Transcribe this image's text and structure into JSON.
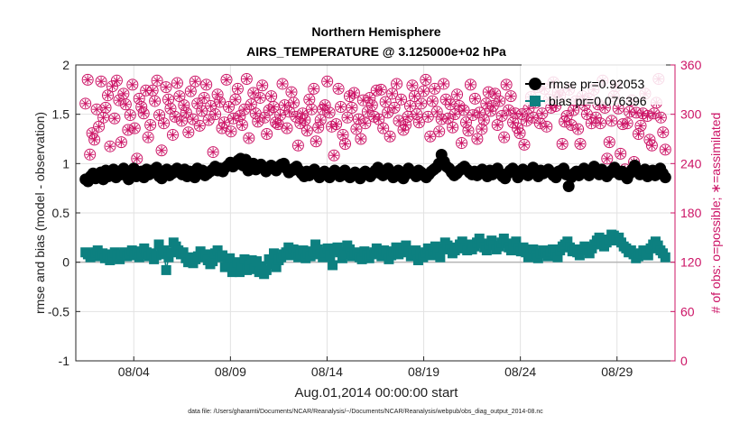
{
  "chart_data": {
    "type": "line",
    "title": "Northern Hemisphere",
    "subtitle": "AIRS_TEMPERATURE @ 3.125000e+02 hPa",
    "xlabel": "Aug.01,2014 00:00:00 start",
    "ylabel_left": "rmse and bias (model - observation)",
    "ylabel_right": "# of obs: o=possible; ∗=assimilated",
    "footnote": "data file: /Users/gharamti/Documents/NCAR/Reanalysis/~/Documents/NCAR/Reanalysis/webpub/obs_diag_output_2014-08.nc",
    "xlim": [
      1,
      32
    ],
    "ylim_left": [
      -1,
      2
    ],
    "ylim_right": [
      0,
      360
    ],
    "x_ticks": [
      4,
      9,
      14,
      19,
      24,
      29
    ],
    "x_tick_labels": [
      "08/04",
      "08/09",
      "08/14",
      "08/19",
      "08/24",
      "08/29"
    ],
    "y_left_ticks": [
      -1,
      -0.5,
      0,
      0.5,
      1,
      1.5,
      2
    ],
    "y_left_tick_labels": [
      "-1",
      "-0.5",
      "0",
      "0.5",
      "1",
      "1.5",
      "2"
    ],
    "y_right_ticks": [
      0,
      60,
      120,
      180,
      240,
      300,
      360
    ],
    "y_right_tick_labels": [
      "0",
      "60",
      "120",
      "180",
      "240",
      "300",
      "360"
    ],
    "grid": true,
    "legend_position": "top-right",
    "colors": {
      "rmse": "#000000",
      "bias": "#0d8080",
      "obs": "#cc1466",
      "grid": "#e2e2e2",
      "zero_line": "#b5b5b5"
    },
    "series": [
      {
        "name": "rmse",
        "legend": "rmse pr=0.92053",
        "axis": "left",
        "marker": "circle",
        "values": [
          0.84,
          0.82,
          0.87,
          0.9,
          0.85,
          0.88,
          0.91,
          0.84,
          0.93,
          0.87,
          0.9,
          0.94,
          0.86,
          0.92,
          0.89,
          0.95,
          0.88,
          0.84,
          0.91,
          0.95,
          0.87,
          0.9,
          0.92,
          0.86,
          0.94,
          0.89,
          0.93,
          0.91,
          0.96,
          0.87,
          0.85,
          0.92,
          0.94,
          0.88,
          0.9,
          0.93,
          0.95,
          0.91,
          0.89,
          0.94,
          0.87,
          0.92,
          0.9,
          0.86,
          0.95,
          0.91,
          0.93,
          0.88,
          0.9,
          0.92,
          0.94,
          0.97,
          0.93,
          0.95,
          0.92,
          0.96,
          0.98,
          1.01,
          0.97,
          0.99,
          1.03,
          1.05,
          0.98,
          1.04,
          0.93,
          0.96,
          1.0,
          0.94,
          0.97,
          0.99,
          0.95,
          0.92,
          0.96,
          0.98,
          0.95,
          0.93,
          0.97,
          0.99,
          1.0,
          0.95,
          0.91,
          0.93,
          0.95,
          0.97,
          0.93,
          0.9,
          0.87,
          0.92,
          0.88,
          0.91,
          0.94,
          0.9,
          0.86,
          0.89,
          0.92,
          0.88,
          0.86,
          0.9,
          0.93,
          0.89,
          0.87,
          0.91,
          0.93,
          0.88,
          0.86,
          0.89,
          0.91,
          0.88,
          0.85,
          0.9,
          0.92,
          0.89,
          0.87,
          0.9,
          0.93,
          0.96,
          0.9,
          0.88,
          0.92,
          0.95,
          0.91,
          0.86,
          0.9,
          0.93,
          0.87,
          0.85,
          0.89,
          0.95,
          0.92,
          0.9,
          0.87,
          0.93,
          0.91,
          0.88,
          0.86,
          0.89,
          0.92,
          0.94,
          0.96,
          1.0,
          1.09,
          1.02,
          0.97,
          0.95,
          0.91,
          0.88,
          0.9,
          0.93,
          0.95,
          0.97,
          0.94,
          0.91,
          0.89,
          0.92,
          0.88,
          0.9,
          0.94,
          0.91,
          0.87,
          0.93,
          0.89,
          0.91,
          0.95,
          0.9,
          0.87,
          0.85,
          0.9,
          0.93,
          0.95,
          0.91,
          0.86,
          0.89,
          0.94,
          0.92,
          0.88,
          0.9,
          0.96,
          0.91,
          0.87,
          0.93,
          0.9,
          0.92,
          0.94,
          0.91,
          0.88,
          0.86,
          0.92,
          0.93,
          0.95,
          0.89,
          0.77,
          0.86,
          0.9,
          0.92,
          0.88,
          0.91,
          0.95,
          0.9,
          0.88,
          0.93,
          0.97,
          0.92,
          0.89,
          0.94,
          0.91,
          0.87,
          0.9,
          0.93,
          0.96,
          0.91,
          0.89,
          0.92,
          0.88,
          0.85,
          0.9,
          0.94,
          0.98,
          0.93,
          0.89,
          0.92,
          0.94,
          0.87,
          0.9,
          0.93,
          0.88,
          0.91,
          0.95,
          0.9,
          0.86
        ]
      },
      {
        "name": "bias",
        "legend": "bias pr=0.076396",
        "axis": "left",
        "marker": "square",
        "values": [
          0.1,
          0.08,
          0.05,
          0.07,
          0.1,
          0.12,
          0.06,
          0.09,
          0.04,
          0.08,
          0.02,
          0.05,
          0.1,
          0.07,
          0.03,
          0.08,
          0.1,
          0.06,
          0.09,
          0.12,
          0.07,
          0.11,
          0.05,
          0.08,
          0.14,
          0.1,
          0.06,
          0.09,
          0.03,
          0.07,
          0.18,
          0.08,
          0.12,
          -0.08,
          0.05,
          0.1,
          0.2,
          0.16,
          0.12,
          0.08,
          0.1,
          0.04,
          0.0,
          0.05,
          -0.01,
          0.03,
          0.06,
          0.11,
          0.05,
          0.08,
          0.02,
          -0.02,
          0.01,
          0.09,
          0.12,
          0.05,
          0.07,
          -0.05,
          -0.02,
          0.04,
          -0.1,
          -0.05,
          0.0,
          -0.1,
          -0.04,
          0.03,
          -0.08,
          -0.03,
          0.02,
          -0.07,
          0.01,
          -0.1,
          -0.04,
          -0.12,
          -0.08,
          0.03,
          -0.02,
          0.09,
          -0.05,
          0.02,
          0.05,
          0.08,
          0.1,
          0.15,
          0.07,
          0.13,
          0.1,
          0.05,
          0.08,
          0.12,
          0.04,
          0.09,
          0.06,
          0.11,
          0.18,
          0.13,
          0.08,
          0.05,
          0.1,
          0.14,
          0.07,
          -0.03,
          0.12,
          0.15,
          0.1,
          0.04,
          0.08,
          0.17,
          0.13,
          0.06,
          0.1,
          0.09,
          0.05,
          0.03,
          0.11,
          0.07,
          0.04,
          0.08,
          0.1,
          0.14,
          0.09,
          0.06,
          0.12,
          0.1,
          0.03,
          0.07,
          0.11,
          0.15,
          0.08,
          0.1,
          0.13,
          0.17,
          0.11,
          0.06,
          0.09,
          0.12,
          0.02,
          0.08,
          0.05,
          0.1,
          0.14,
          0.07,
          0.12,
          0.16,
          0.1,
          0.05,
          0.14,
          0.2,
          0.17,
          0.13,
          0.09,
          0.12,
          0.15,
          0.18,
          0.21,
          0.14,
          0.12,
          0.18,
          0.13,
          0.16,
          0.2,
          0.24,
          0.19,
          0.15,
          0.12,
          0.18,
          0.22,
          0.17,
          0.13,
          0.16,
          0.2,
          0.24,
          0.19,
          0.15,
          0.12,
          0.17,
          0.21,
          0.14,
          0.11,
          0.15,
          0.1,
          0.05,
          0.08,
          0.13,
          0.07,
          0.04,
          0.09,
          0.12,
          0.1,
          0.06,
          0.11,
          0.13,
          0.09,
          0.05,
          0.12,
          0.16,
          0.18,
          0.21,
          0.15,
          0.11,
          0.13,
          0.1,
          0.07,
          0.13,
          0.16,
          0.12,
          0.09,
          0.14,
          0.18,
          0.22,
          0.25,
          0.19,
          0.16,
          0.2,
          0.23,
          0.28,
          0.27,
          0.22,
          0.25,
          0.2,
          0.16,
          0.14,
          0.1,
          0.12,
          0.08,
          0.04,
          0.06,
          0.09,
          0.12,
          0.1,
          0.07,
          0.14,
          0.18,
          0.21,
          0.17,
          0.12,
          0.09,
          0.05
        ]
      },
      {
        "name": "obs",
        "legend": "",
        "axis": "right",
        "marker": "circle-star",
        "values": [
          313,
          342,
          251,
          277,
          269,
          306,
          285,
          340,
          296,
          308,
          323,
          261,
          334,
          295,
          341,
          317,
          266,
          325,
          312,
          281,
          299,
          336,
          283,
          246,
          319,
          309,
          301,
          329,
          272,
          287,
          329,
          316,
          341,
          299,
          256,
          289,
          333,
          318,
          307,
          275,
          297,
          338,
          322,
          292,
          311,
          302,
          278,
          328,
          294,
          340,
          313,
          286,
          304,
          320,
          336,
          293,
          310,
          254,
          300,
          324,
          315,
          283,
          290,
          342,
          309,
          279,
          295,
          318,
          331,
          298,
          287,
          306,
          343,
          271,
          312,
          326,
          301,
          291,
          320,
          335,
          296,
          276,
          305,
          322,
          309,
          290,
          288,
          299,
          337,
          311,
          283,
          303,
          327,
          314,
          297,
          262,
          289,
          301,
          293,
          280,
          318,
          306,
          331,
          267,
          284,
          293,
          306,
          311,
          340,
          302,
          285,
          250,
          288,
          331,
          309,
          275,
          264,
          296,
          322,
          308,
          326,
          282,
          294,
          270,
          317,
          289,
          303,
          320,
          311,
          297,
          329,
          294,
          330,
          283,
          315,
          302,
          273,
          325,
          308,
          337,
          292,
          318,
          281,
          287,
          297,
          310,
          335,
          322,
          300,
          290,
          313,
          328,
          342,
          297,
          273,
          316,
          331,
          303,
          279,
          294,
          337,
          318,
          295,
          312,
          284,
          300,
          324,
          310,
          265,
          305,
          290,
          280,
          336,
          299,
          319,
          270,
          302,
          282,
          293,
          313,
          327,
          304,
          310,
          325,
          287,
          316,
          298,
          272,
          336,
          305,
          322,
          290,
          301,
          283,
          277,
          300,
          263,
          292,
          307,
          321,
          296,
          314,
          333,
          289,
          301,
          331,
          285,
          318,
          308,
          339,
          310,
          327,
          323,
          264,
          291,
          298,
          330,
          287,
          305,
          316,
          282,
          264,
          322,
          311,
          300,
          319,
          289,
          330,
          296,
          312,
          289,
          341,
          308,
          246,
          266,
          292,
          322,
          334,
          307,
          252,
          288,
          233,
          289,
          303,
          317,
          242,
          302,
          276,
          286,
          301,
          325,
          298,
          269,
          262,
          301,
          314,
          343,
          296,
          278,
          257
        ]
      }
    ]
  }
}
